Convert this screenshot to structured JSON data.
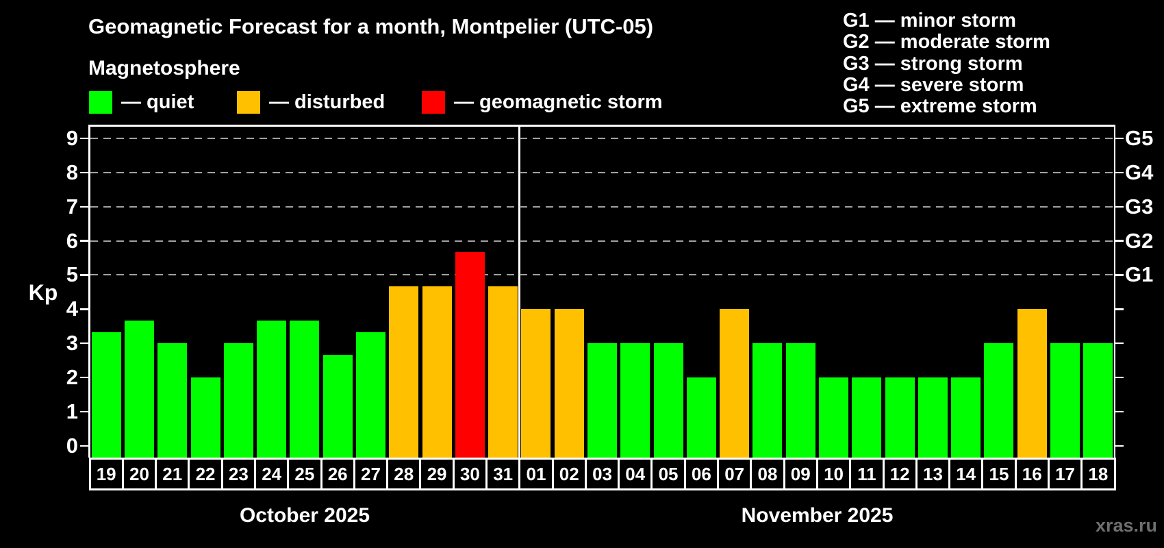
{
  "title": "Geomagnetic Forecast for a month, Montpelier (UTC-05)",
  "subtitle": "Magnetosphere",
  "legend": {
    "items": [
      {
        "label": "— quiet",
        "status": "quiet",
        "color": "#00ff00"
      },
      {
        "label": "— disturbed",
        "status": "disturbed",
        "color": "#ffc000"
      },
      {
        "label": "— geomagnetic storm",
        "status": "storm",
        "color": "#ff0000"
      }
    ]
  },
  "storm_scale_legend": {
    "lines": [
      "G1 — minor storm",
      "G2 — moderate storm",
      "G3 — strong storm",
      "G4 — severe storm",
      "G5 — extreme storm"
    ]
  },
  "watermark": "xras.ru",
  "chart_data": {
    "type": "bar",
    "title": "Geomagnetic Forecast for a month, Montpelier (UTC-05)",
    "ylabel": "Kp",
    "ylim": [
      0,
      9
    ],
    "yticks": [
      0,
      1,
      2,
      3,
      4,
      5,
      6,
      7,
      8,
      9
    ],
    "grid_kp": [
      5,
      6,
      7,
      8,
      9
    ],
    "right_axis_labels": [
      {
        "label": "G1",
        "kp": 5
      },
      {
        "label": "G2",
        "kp": 6
      },
      {
        "label": "G3",
        "kp": 7
      },
      {
        "label": "G4",
        "kp": 8
      },
      {
        "label": "G5",
        "kp": 9
      }
    ],
    "colors": {
      "quiet": "#00ff00",
      "disturbed": "#ffc000",
      "storm": "#ff0000"
    },
    "months": [
      {
        "label": "October 2025",
        "days": [
          {
            "day": "19",
            "kp": 3.33,
            "status": "quiet"
          },
          {
            "day": "20",
            "kp": 3.67,
            "status": "quiet"
          },
          {
            "day": "21",
            "kp": 3.0,
            "status": "quiet"
          },
          {
            "day": "22",
            "kp": 2.0,
            "status": "quiet"
          },
          {
            "day": "23",
            "kp": 3.0,
            "status": "quiet"
          },
          {
            "day": "24",
            "kp": 3.67,
            "status": "quiet"
          },
          {
            "day": "25",
            "kp": 3.67,
            "status": "quiet"
          },
          {
            "day": "26",
            "kp": 2.67,
            "status": "quiet"
          },
          {
            "day": "27",
            "kp": 3.33,
            "status": "quiet"
          },
          {
            "day": "28",
            "kp": 4.67,
            "status": "disturbed"
          },
          {
            "day": "29",
            "kp": 4.67,
            "status": "disturbed"
          },
          {
            "day": "30",
            "kp": 5.67,
            "status": "storm"
          },
          {
            "day": "31",
            "kp": 4.67,
            "status": "disturbed"
          }
        ]
      },
      {
        "label": "November 2025",
        "days": [
          {
            "day": "01",
            "kp": 4.0,
            "status": "disturbed"
          },
          {
            "day": "02",
            "kp": 4.0,
            "status": "disturbed"
          },
          {
            "day": "03",
            "kp": 3.0,
            "status": "quiet"
          },
          {
            "day": "04",
            "kp": 3.0,
            "status": "quiet"
          },
          {
            "day": "05",
            "kp": 3.0,
            "status": "quiet"
          },
          {
            "day": "06",
            "kp": 2.0,
            "status": "quiet"
          },
          {
            "day": "07",
            "kp": 4.0,
            "status": "disturbed"
          },
          {
            "day": "08",
            "kp": 3.0,
            "status": "quiet"
          },
          {
            "day": "09",
            "kp": 3.0,
            "status": "quiet"
          },
          {
            "day": "10",
            "kp": 2.0,
            "status": "quiet"
          },
          {
            "day": "11",
            "kp": 2.0,
            "status": "quiet"
          },
          {
            "day": "12",
            "kp": 2.0,
            "status": "quiet"
          },
          {
            "day": "13",
            "kp": 2.0,
            "status": "quiet"
          },
          {
            "day": "14",
            "kp": 2.0,
            "status": "quiet"
          },
          {
            "day": "15",
            "kp": 3.0,
            "status": "quiet"
          },
          {
            "day": "16",
            "kp": 4.0,
            "status": "disturbed"
          },
          {
            "day": "17",
            "kp": 3.0,
            "status": "quiet"
          },
          {
            "day": "18",
            "kp": 3.0,
            "status": "quiet"
          }
        ]
      }
    ]
  }
}
